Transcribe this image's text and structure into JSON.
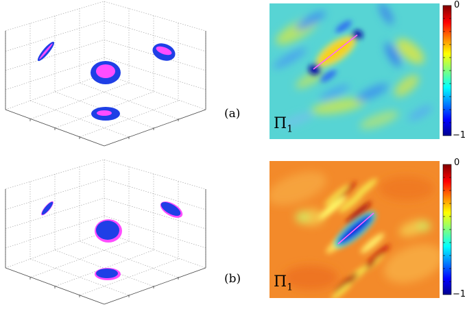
{
  "figure": {
    "rows": [
      {
        "panel_label": "(a)",
        "heatmap_label": "Π",
        "heatmap_label_sub": "1",
        "colorbar": {
          "max_label": "0",
          "min_label": "−1",
          "min": -1,
          "max": 0
        },
        "colors": {
          "outer_region": "#1f3fe6",
          "inner_region": "#ff4dff",
          "diagonal_line": "#ff66ff"
        }
      },
      {
        "panel_label": "(b)",
        "heatmap_label": "Π",
        "heatmap_label_sub": "1",
        "colorbar": {
          "max_label": "0",
          "min_label": "−1",
          "min": -1,
          "max": 0
        },
        "colors": {
          "outer_region": "#1f3fe6",
          "inner_region": "#ff4dff",
          "diagonal_line": "#ff66ff"
        }
      }
    ]
  }
}
